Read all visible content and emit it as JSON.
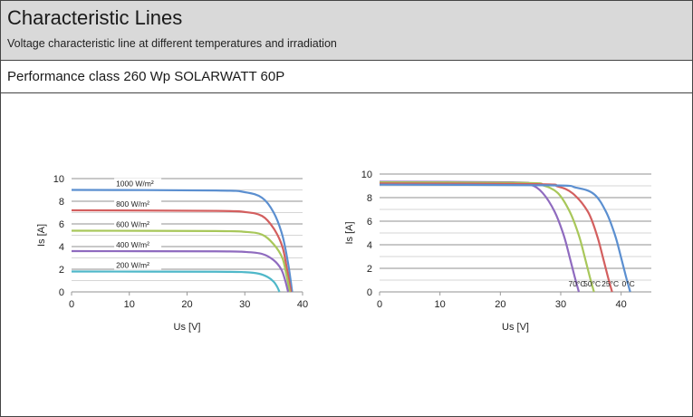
{
  "header": {
    "title": "Characteristic Lines",
    "subtitle": "Voltage characteristic line at different temperatures and irradiation"
  },
  "performance_class": "Performance class 260 Wp SOLARWATT 60P",
  "chart_data": [
    {
      "type": "line",
      "xlabel": "Us [V]",
      "ylabel": "Is [A]",
      "xlim": [
        0,
        40
      ],
      "ylim": [
        0,
        10
      ],
      "xticks": [
        "0",
        "10",
        "20",
        "30",
        "40"
      ],
      "yticks": [
        "0",
        "2",
        "4",
        "6",
        "8",
        "10"
      ],
      "grid": "horizontal",
      "series": [
        {
          "name": "1000 W/m²",
          "color": "#5b8fd0",
          "x": [
            0,
            25,
            30,
            33,
            35,
            36.5,
            37.5,
            38.2
          ],
          "y": [
            9.0,
            8.95,
            8.8,
            8.3,
            7.0,
            5.0,
            2.5,
            0
          ]
        },
        {
          "name": "800 W/m²",
          "color": "#d35f5f",
          "x": [
            0,
            25,
            30,
            33,
            35,
            36.5,
            37.3,
            38.0
          ],
          "y": [
            7.2,
            7.15,
            7.05,
            6.7,
            5.6,
            4.0,
            2.0,
            0
          ]
        },
        {
          "name": "600 W/m²",
          "color": "#a8c75a",
          "x": [
            0,
            25,
            30,
            33,
            35,
            36.5,
            37.2,
            37.8
          ],
          "y": [
            5.4,
            5.37,
            5.3,
            5.05,
            4.2,
            3.0,
            1.5,
            0
          ]
        },
        {
          "name": "400 W/m²",
          "color": "#8f6bbf",
          "x": [
            0,
            25,
            30,
            33,
            35,
            36.3,
            37.0,
            37.5
          ],
          "y": [
            3.6,
            3.58,
            3.53,
            3.35,
            2.8,
            2.0,
            1.0,
            0
          ]
        },
        {
          "name": "200 W/m²",
          "color": "#4fb8c9",
          "x": [
            0,
            25,
            30,
            32.5,
            34,
            35,
            35.6,
            36
          ],
          "y": [
            1.8,
            1.78,
            1.74,
            1.6,
            1.3,
            0.9,
            0.45,
            0
          ]
        }
      ]
    },
    {
      "type": "line",
      "xlabel": "Us [V]",
      "ylabel": "Is [A]",
      "xlim": [
        0,
        45
      ],
      "ylim": [
        0,
        10
      ],
      "xticks": [
        "0",
        "10",
        "20",
        "30",
        "40"
      ],
      "yticks": [
        "0",
        "2",
        "4",
        "6",
        "8",
        "10"
      ],
      "grid": "horizontal",
      "series": [
        {
          "name": "70°C",
          "color": "#8f6bbf",
          "x": [
            0,
            22,
            25,
            27,
            29,
            30.5,
            31.5,
            32.3,
            33
          ],
          "y": [
            9.35,
            9.3,
            9.1,
            8.4,
            6.8,
            4.8,
            2.9,
            1.3,
            0
          ]
        },
        {
          "name": "50°C",
          "color": "#a8c75a",
          "x": [
            0,
            24,
            27,
            29.5,
            31.5,
            33,
            34,
            34.8,
            35.5
          ],
          "y": [
            9.3,
            9.25,
            9.05,
            8.4,
            6.8,
            4.8,
            2.9,
            1.3,
            0
          ]
        },
        {
          "name": "25°C",
          "color": "#d35f5f",
          "x": [
            0,
            26,
            29.5,
            32,
            34.5,
            36,
            37,
            37.8,
            38.5
          ],
          "y": [
            9.2,
            9.15,
            8.95,
            8.35,
            6.8,
            4.8,
            2.9,
            1.3,
            0
          ]
        },
        {
          "name": "0°C",
          "color": "#5b8fd0",
          "x": [
            0,
            28,
            32.5,
            35.5,
            37.5,
            39,
            40,
            40.8,
            41.5
          ],
          "y": [
            9.1,
            9.05,
            8.85,
            8.3,
            6.8,
            4.8,
            2.9,
            1.3,
            0
          ]
        }
      ]
    }
  ]
}
